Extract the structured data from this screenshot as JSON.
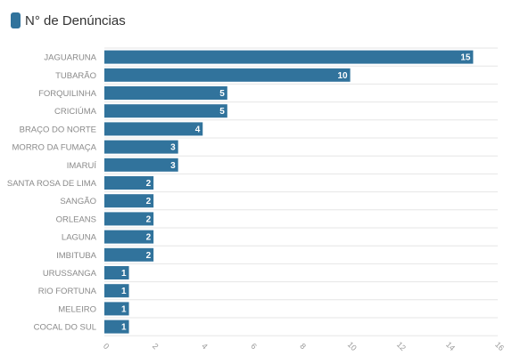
{
  "legend": {
    "label": "N° de Denúncias",
    "color": "#31739c"
  },
  "chart_data": {
    "type": "bar",
    "orientation": "horizontal",
    "categories": [
      "JAGUARUNA",
      "TUBARÃO",
      "FORQUILINHA",
      "CRICIÚMA",
      "BRAÇO DO NORTE",
      "MORRO DA FUMAÇA",
      "IMARUÍ",
      "SANTA ROSA DE LIMA",
      "SANGÃO",
      "ORLEANS",
      "LAGUNA",
      "IMBITUBA",
      "URUSSANGA",
      "RIO FORTUNA",
      "MELEIRO",
      "COCAL DO SUL"
    ],
    "series": [
      {
        "name": "N° de Denúncias",
        "values": [
          15,
          10,
          5,
          5,
          4,
          3,
          3,
          2,
          2,
          2,
          2,
          2,
          1,
          1,
          1,
          1
        ]
      }
    ],
    "xlim": [
      0,
      16
    ],
    "xticks": [
      0,
      2,
      4,
      6,
      8,
      10,
      12,
      14,
      16
    ],
    "grid": true,
    "legend_position": "top-left",
    "bar_color": "#31739c"
  }
}
